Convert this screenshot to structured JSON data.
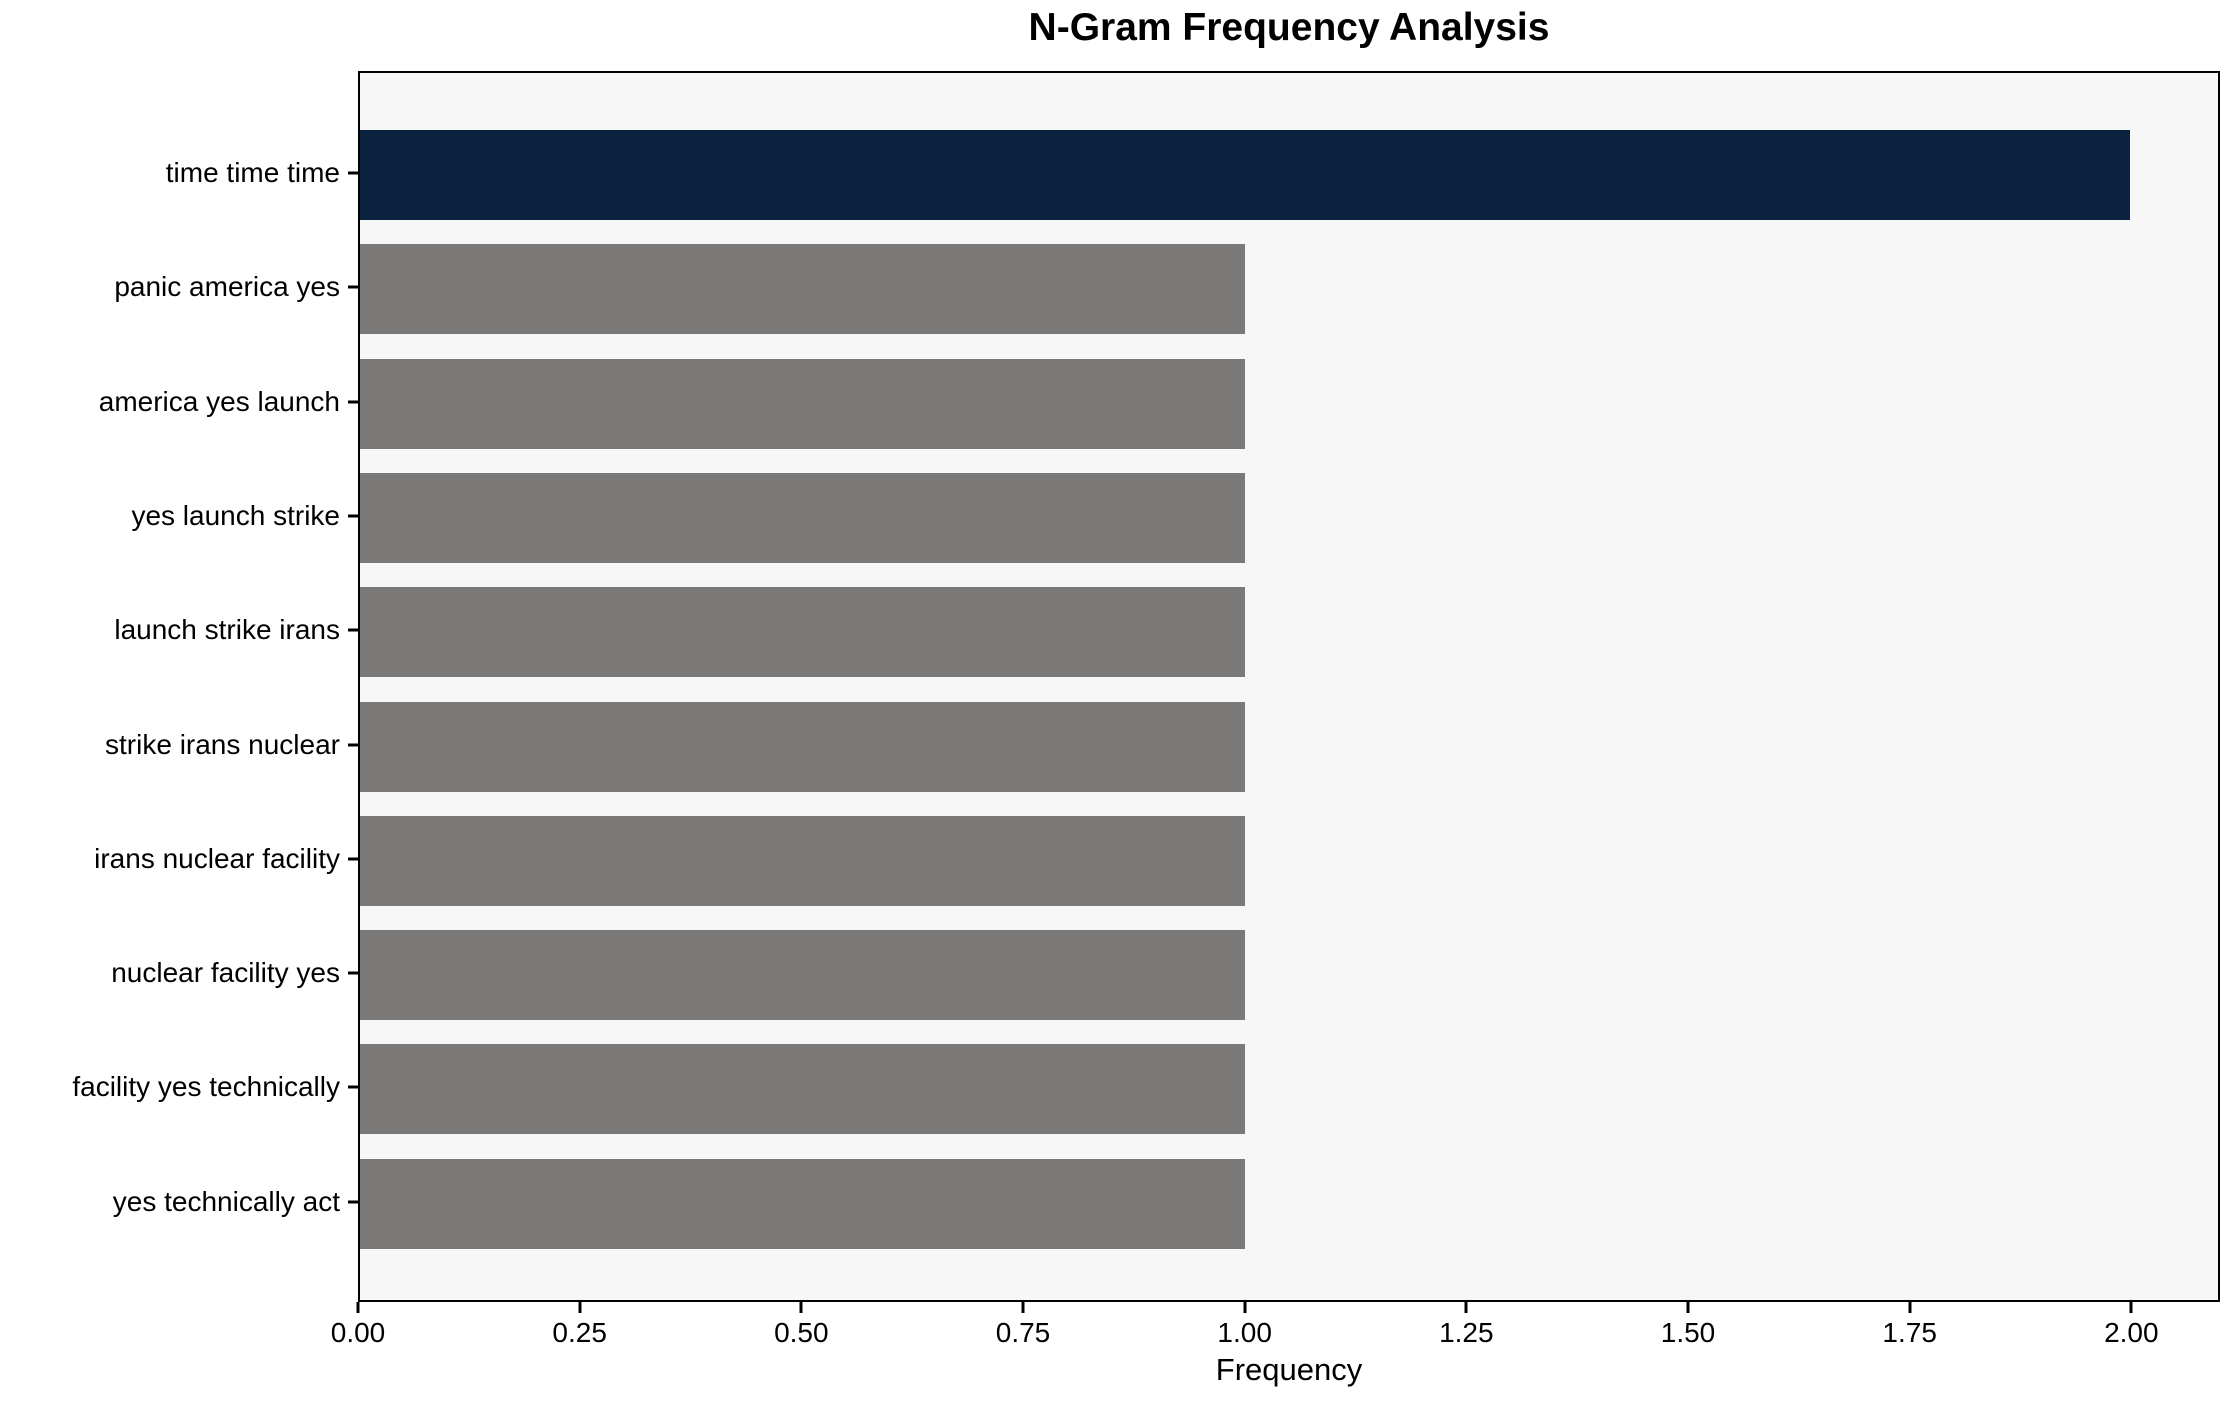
{
  "chart_data": {
    "type": "bar",
    "orientation": "horizontal",
    "title": "N-Gram Frequency Analysis",
    "xlabel": "Frequency",
    "ylabel": "",
    "categories": [
      "time time time",
      "panic america yes",
      "america yes launch",
      "yes launch strike",
      "launch strike irans",
      "strike irans nuclear",
      "irans nuclear facility",
      "nuclear facility yes",
      "facility yes technically",
      "yes technically act"
    ],
    "values": [
      2,
      1,
      1,
      1,
      1,
      1,
      1,
      1,
      1,
      1
    ],
    "bar_color_assignment": [
      "highlight",
      "default",
      "default",
      "default",
      "default",
      "default",
      "default",
      "default",
      "default",
      "default"
    ],
    "xlim": [
      0,
      2.1
    ],
    "xticks": [
      0.0,
      0.25,
      0.5,
      0.75,
      1.0,
      1.25,
      1.5,
      1.75,
      2.0
    ],
    "xtick_labels": [
      "0.00",
      "0.25",
      "0.50",
      "0.75",
      "1.00",
      "1.25",
      "1.50",
      "1.75",
      "2.00"
    ],
    "grid": false,
    "legend": null,
    "colors": {
      "highlight_bar": "#0c2340",
      "default_bar": "#7a7978",
      "plot_background": "#f7f7f7",
      "figure_background": "#ffffff",
      "spine": "#000000",
      "text": "#000000"
    }
  }
}
